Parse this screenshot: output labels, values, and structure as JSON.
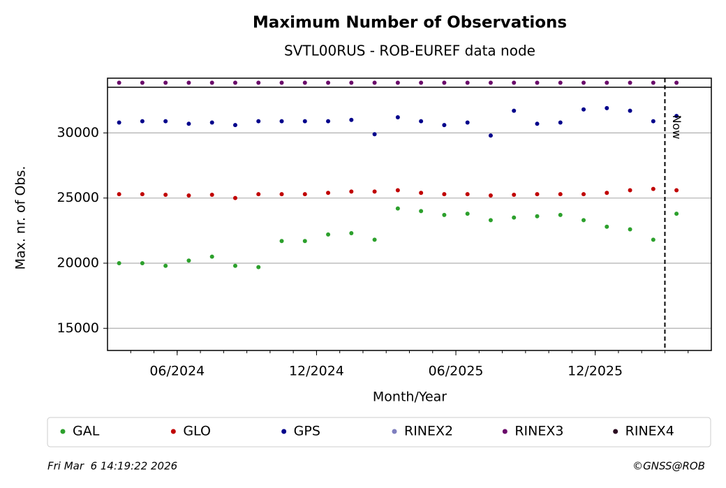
{
  "chart_data": {
    "type": "scatter",
    "title": "Maximum Number of Observations",
    "subtitle": "SVTL00RUS - ROB-EUREF data node",
    "x_label": "Month/Year",
    "y_label": "Max. nr. of Obs.",
    "x": [
      "2024-03",
      "2024-04",
      "2024-05",
      "2024-06",
      "2024-07",
      "2024-08",
      "2024-09",
      "2024-10",
      "2024-11",
      "2024-12",
      "2025-01",
      "2025-02",
      "2025-03",
      "2025-04",
      "2025-05",
      "2025-06",
      "2025-07",
      "2025-08",
      "2025-09",
      "2025-10",
      "2025-11",
      "2025-12",
      "2026-01",
      "2026-02",
      "2026-03"
    ],
    "series": [
      {
        "name": "GAL",
        "color": "#2ca02c",
        "values": [
          20000,
          20000,
          19800,
          20200,
          20500,
          19800,
          19700,
          21700,
          21700,
          22200,
          22300,
          21800,
          24200,
          24000,
          23700,
          23800,
          23300,
          23500,
          23600,
          23700,
          23300,
          22800,
          22600,
          21800,
          23800
        ]
      },
      {
        "name": "GLO",
        "color": "#c00000",
        "values": [
          25300,
          25300,
          25250,
          25200,
          25250,
          25000,
          25300,
          25300,
          25300,
          25400,
          25500,
          25500,
          25600,
          25400,
          25300,
          25300,
          25200,
          25250,
          25300,
          25300,
          25300,
          25400,
          25600,
          25700,
          25600
        ]
      },
      {
        "name": "GPS",
        "color": "#00008b",
        "values": [
          30800,
          30900,
          30900,
          30700,
          30800,
          30600,
          30900,
          30900,
          30900,
          30900,
          31000,
          29900,
          31200,
          30900,
          30600,
          30800,
          29800,
          31700,
          30700,
          30800,
          31800,
          31900,
          31700,
          30900,
          31300
        ]
      },
      {
        "name": "RINEX2",
        "color": "#7f7fbf",
        "values": []
      },
      {
        "name": "RINEX3",
        "color": "#6a0a6a",
        "values": [
          33850,
          33850,
          33850,
          33850,
          33850,
          33850,
          33850,
          33850,
          33850,
          33850,
          33850,
          33850,
          33850,
          33850,
          33850,
          33850,
          33850,
          33850,
          33850,
          33850,
          33850,
          33850,
          33850,
          33850,
          33850
        ]
      },
      {
        "name": "RINEX4",
        "color": "#2a0a20",
        "values": []
      }
    ],
    "xlim": [
      "2024-03",
      "2026-05"
    ],
    "xticks": [
      {
        "value": "2024-06",
        "label": "06/2024"
      },
      {
        "value": "2024-12",
        "label": "12/2024"
      },
      {
        "value": "2025-06",
        "label": "06/2025"
      },
      {
        "value": "2025-12",
        "label": "12/2025"
      }
    ],
    "ylim": [
      13300,
      34200
    ],
    "yticks": [
      15000,
      20000,
      25000,
      30000
    ],
    "grid": true,
    "now": {
      "x": "2026-03",
      "label": "Now"
    },
    "footer_left": "Fri Mar  6 14:19:22 2026",
    "footer_right": "©GNSS@ROB"
  }
}
